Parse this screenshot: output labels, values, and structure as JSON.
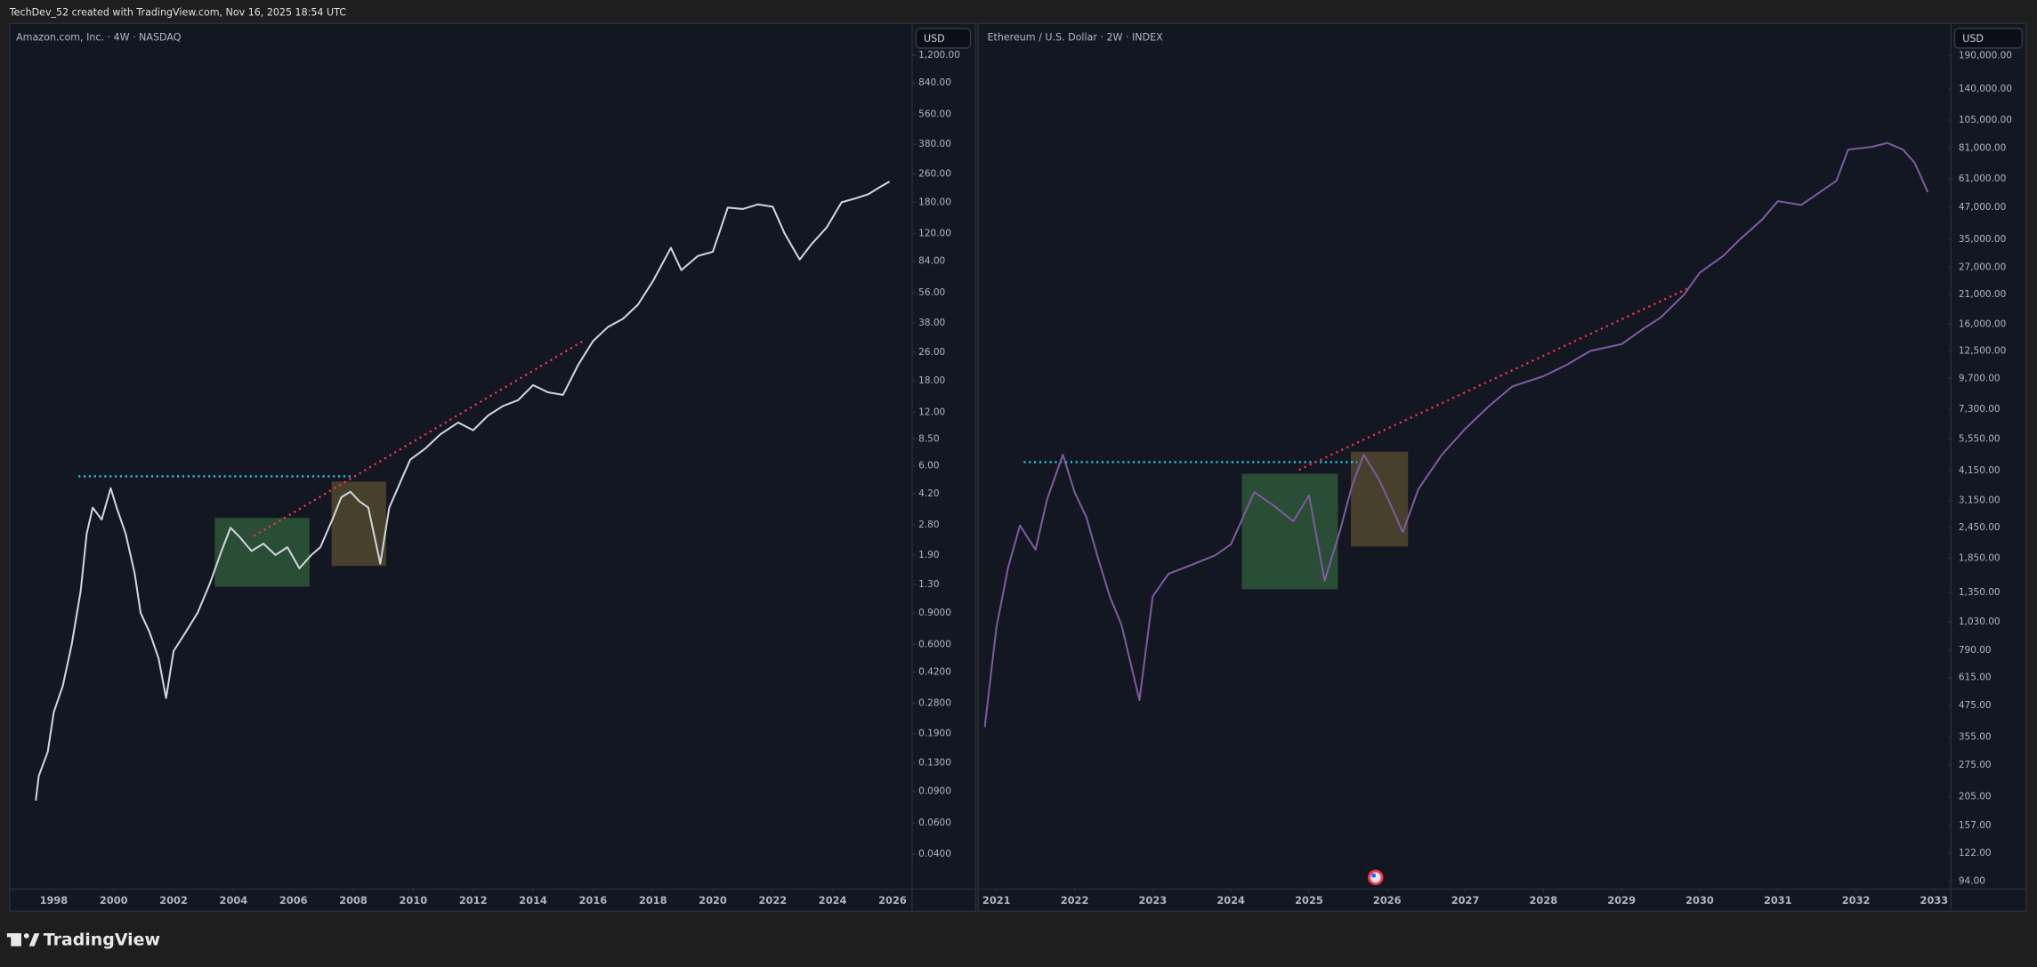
{
  "header": {
    "text": "TechDev_52 created with TradingView.com, Nov 16, 2025 18:54 UTC"
  },
  "footer": {
    "brand": "TradingView"
  },
  "chart_data": [
    {
      "type": "line",
      "title": "Amazon.com, Inc. · 4W · NASDAQ",
      "currency": "USD",
      "color": "#d1d4dc",
      "log": true,
      "grid": false,
      "x": [
        1997.4,
        1997.5,
        1997.8,
        1998.0,
        1998.3,
        1998.6,
        1998.9,
        1999.1,
        1999.3,
        1999.6,
        1999.9,
        2000.1,
        2000.4,
        2000.7,
        2000.9,
        2001.2,
        2001.5,
        2001.75,
        2002.0,
        2002.4,
        2002.8,
        2003.2,
        2003.6,
        2003.9,
        2004.2,
        2004.6,
        2005.0,
        2005.4,
        2005.8,
        2006.2,
        2006.6,
        2006.9,
        2007.3,
        2007.6,
        2007.9,
        2008.2,
        2008.5,
        2008.9,
        2009.2,
        2009.6,
        2009.9,
        2010.4,
        2010.9,
        2011.5,
        2012.0,
        2012.5,
        2013.0,
        2013.5,
        2014.0,
        2014.5,
        2015.0,
        2015.5,
        2016.0,
        2016.5,
        2017.0,
        2017.5,
        2018.0,
        2018.6,
        2018.95,
        2019.5,
        2020.0,
        2020.5,
        2021.0,
        2021.5,
        2022.0,
        2022.4,
        2022.9,
        2023.3,
        2023.8,
        2024.3,
        2024.8,
        2025.2,
        2025.6,
        2025.9
      ],
      "values": [
        0.08,
        0.11,
        0.15,
        0.25,
        0.35,
        0.6,
        1.2,
        2.5,
        3.5,
        3.0,
        4.5,
        3.5,
        2.5,
        1.5,
        0.9,
        0.7,
        0.5,
        0.3,
        0.55,
        0.7,
        0.9,
        1.3,
        2.0,
        2.7,
        2.4,
        2.0,
        2.2,
        1.9,
        2.1,
        1.6,
        1.9,
        2.1,
        3.0,
        4.0,
        4.3,
        3.8,
        3.5,
        1.7,
        3.5,
        5.0,
        6.5,
        7.5,
        9.0,
        10.5,
        9.5,
        11.5,
        13.0,
        14.0,
        17.0,
        15.5,
        15.0,
        22.0,
        30.0,
        36.0,
        40.0,
        48.0,
        65.0,
        100.0,
        75.0,
        90.0,
        95.0,
        168.0,
        165.0,
        175.0,
        170.0,
        120.0,
        86.0,
        105.0,
        130.0,
        180.0,
        190.0,
        200.0,
        220.0,
        235.0
      ],
      "xlim": [
        1996.57,
        2026.65
      ],
      "ylim": [
        0.0255,
        1750
      ],
      "xticks": [
        1998,
        2000,
        2002,
        2004,
        2006,
        2008,
        2010,
        2012,
        2014,
        2016,
        2018,
        2020,
        2022,
        2024,
        2026
      ],
      "yticks": [
        {
          "value": 1200,
          "label": "1,200.00"
        },
        {
          "value": 840,
          "label": "840.00"
        },
        {
          "value": 560,
          "label": "560.00"
        },
        {
          "value": 380,
          "label": "380.00"
        },
        {
          "value": 260,
          "label": "260.00"
        },
        {
          "value": 180,
          "label": "180.00"
        },
        {
          "value": 120,
          "label": "120.00"
        },
        {
          "value": 84,
          "label": "84.00"
        },
        {
          "value": 56,
          "label": "56.00"
        },
        {
          "value": 38,
          "label": "38.00"
        },
        {
          "value": 26,
          "label": "26.00"
        },
        {
          "value": 18,
          "label": "18.00"
        },
        {
          "value": 12,
          "label": "12.00"
        },
        {
          "value": 8.5,
          "label": "8.50"
        },
        {
          "value": 6,
          "label": "6.00"
        },
        {
          "value": 4.2,
          "label": "4.20"
        },
        {
          "value": 2.8,
          "label": "2.80"
        },
        {
          "value": 1.9,
          "label": "1.90"
        },
        {
          "value": 1.3,
          "label": "1.30"
        },
        {
          "value": 0.9,
          "label": "0.9000"
        },
        {
          "value": 0.6,
          "label": "0.6000"
        },
        {
          "value": 0.42,
          "label": "0.4200"
        },
        {
          "value": 0.28,
          "label": "0.2800"
        },
        {
          "value": 0.19,
          "label": "0.1900"
        },
        {
          "value": 0.13,
          "label": "0.1300"
        },
        {
          "value": 0.09,
          "label": "0.0900"
        },
        {
          "value": 0.06,
          "label": "0.0600"
        },
        {
          "value": 0.04,
          "label": "0.0400"
        }
      ]
    },
    {
      "type": "line",
      "title": "Ethereum / U.S. Dollar · 2W · INDEX",
      "currency": "USD",
      "color": "#7e5a9e",
      "log": true,
      "grid": false,
      "x": [
        2020.85,
        2021.0,
        2021.15,
        2021.3,
        2021.5,
        2021.65,
        2021.85,
        2022.0,
        2022.15,
        2022.3,
        2022.45,
        2022.6,
        2022.83,
        2023.0,
        2023.2,
        2023.5,
        2023.8,
        2024.0,
        2024.3,
        2024.55,
        2024.8,
        2025.0,
        2025.2,
        2025.4,
        2025.55,
        2025.7,
        2025.9,
        2026.05,
        2026.2,
        2026.4,
        2026.7,
        2027.0,
        2027.3,
        2027.6,
        2028.0,
        2028.3,
        2028.6,
        2029.0,
        2029.3,
        2029.5,
        2029.8,
        2030.0,
        2030.3,
        2030.5,
        2030.8,
        2031.0,
        2031.3,
        2031.5,
        2031.75,
        2031.9,
        2032.2,
        2032.4,
        2032.6,
        2032.75,
        2032.92
      ],
      "values": [
        390,
        980,
        1700,
        2500,
        2000,
        3200,
        4800,
        3400,
        2700,
        1850,
        1300,
        1000,
        500,
        1300,
        1600,
        1740,
        1900,
        2100,
        3400,
        3000,
        2600,
        3300,
        1500,
        2400,
        3600,
        4800,
        3800,
        3000,
        2350,
        3500,
        4800,
        6100,
        7500,
        9000,
        9900,
        11000,
        12500,
        13300,
        15500,
        17000,
        21000,
        25700,
        30000,
        34600,
        42000,
        49700,
        48000,
        53000,
        60000,
        80000,
        82000,
        85000,
        80000,
        71000,
        54000
      ],
      "xlim": [
        2020.8,
        2033.18
      ],
      "ylim": [
        87.5,
        250000
      ],
      "xticks": [
        2021,
        2022,
        2023,
        2024,
        2025,
        2026,
        2027,
        2028,
        2029,
        2030,
        2031,
        2032,
        2033
      ],
      "yticks": [
        {
          "value": 190000,
          "label": "190,000.00"
        },
        {
          "value": 140000,
          "label": "140,000.00"
        },
        {
          "value": 105000,
          "label": "105,000.00"
        },
        {
          "value": 81000,
          "label": "81,000.00"
        },
        {
          "value": 61000,
          "label": "61,000.00"
        },
        {
          "value": 47000,
          "label": "47,000.00"
        },
        {
          "value": 35000,
          "label": "35,000.00"
        },
        {
          "value": 27000,
          "label": "27,000.00"
        },
        {
          "value": 21000,
          "label": "21,000.00"
        },
        {
          "value": 16000,
          "label": "16,000.00"
        },
        {
          "value": 12500,
          "label": "12,500.00"
        },
        {
          "value": 9700,
          "label": "9,700.00"
        },
        {
          "value": 7300,
          "label": "7,300.00"
        },
        {
          "value": 5550,
          "label": "5,550.00"
        },
        {
          "value": 4150,
          "label": "4,150.00"
        },
        {
          "value": 3150,
          "label": "3,150.00"
        },
        {
          "value": 2450,
          "label": "2,450.00"
        },
        {
          "value": 1850,
          "label": "1,850.00"
        },
        {
          "value": 1350,
          "label": "1,350.00"
        },
        {
          "value": 1030,
          "label": "1,030.00"
        },
        {
          "value": 790,
          "label": "790.00"
        },
        {
          "value": 615,
          "label": "615.00"
        },
        {
          "value": 475,
          "label": "475.00"
        },
        {
          "value": 355,
          "label": "355.00"
        },
        {
          "value": 275,
          "label": "275.00"
        },
        {
          "value": 205,
          "label": "205.00"
        },
        {
          "value": 157,
          "label": "157.00"
        },
        {
          "value": 122,
          "label": "122.00"
        },
        {
          "value": 94,
          "label": "94.00"
        }
      ]
    }
  ]
}
